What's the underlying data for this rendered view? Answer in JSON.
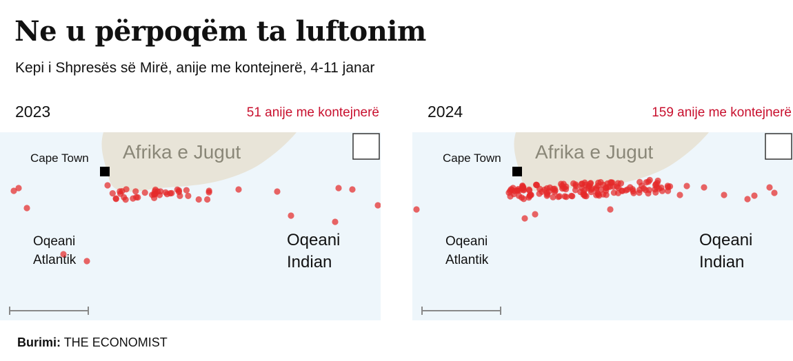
{
  "header": {
    "title": "Ne u përpoqëm ta luftonim",
    "subtitle": "Kepi i Shpresës së Mirë, anije me kontejnerë, 4-11 janar"
  },
  "colors": {
    "ocean": "#eef6fb",
    "land": "#e8e4d8",
    "land_label": "#8a8778",
    "ship": "#e52a2a",
    "count_text": "#c8102e"
  },
  "maps": [
    {
      "year": "2023",
      "ship_count": "51 anije me kontejnerë",
      "labels": {
        "country": "Afrika e Jugut",
        "city": "Cape Town",
        "atlantic_line1": "Oqeani",
        "atlantic_line2": "Atlantik",
        "indian_line1": "Oqeani",
        "indian_line2": "Indian"
      }
    },
    {
      "year": "2024",
      "ship_count": "159 anije me kontejnerë",
      "labels": {
        "country": "Afrika e Jugut",
        "city": "Cape Town",
        "atlantic_line1": "Oqeani",
        "atlantic_line2": "Atlantik",
        "indian_line1": "Oqeani",
        "indian_line2": "Indian"
      }
    }
  ],
  "source": {
    "label": "Burimi:",
    "name": "THE ECONOMIST"
  }
}
